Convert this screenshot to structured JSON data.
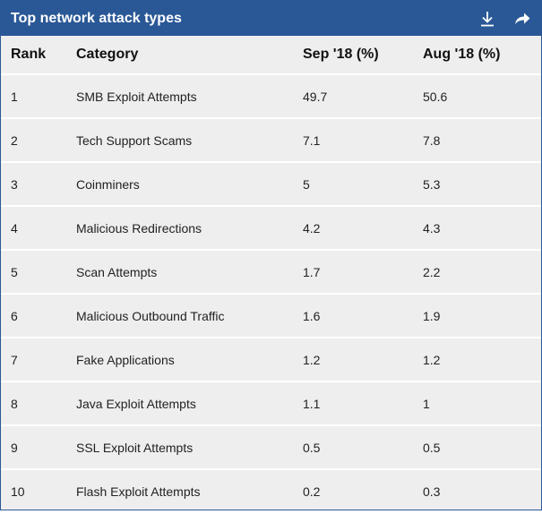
{
  "header": {
    "title": "Top network attack types",
    "icons": [
      "download-icon",
      "share-icon"
    ]
  },
  "colors": {
    "header_bg": "#2a5896",
    "table_bg": "#efeeee",
    "row_divider": "#ffffff"
  },
  "table": {
    "columns": [
      "Rank",
      "Category",
      "Sep '18 (%)",
      "Aug '18 (%)"
    ],
    "rows": [
      {
        "rank": "1",
        "category": "SMB Exploit Attempts",
        "sep": "49.7",
        "aug": "50.6"
      },
      {
        "rank": "2",
        "category": "Tech Support Scams",
        "sep": "7.1",
        "aug": "7.8"
      },
      {
        "rank": "3",
        "category": "Coinminers",
        "sep": "5",
        "aug": "5.3"
      },
      {
        "rank": "4",
        "category": "Malicious Redirections",
        "sep": "4.2",
        "aug": "4.3"
      },
      {
        "rank": "5",
        "category": "Scan Attempts",
        "sep": "1.7",
        "aug": "2.2"
      },
      {
        "rank": "6",
        "category": "Malicious Outbound Traffic",
        "sep": "1.6",
        "aug": "1.9"
      },
      {
        "rank": "7",
        "category": "Fake Applications",
        "sep": "1.2",
        "aug": "1.2"
      },
      {
        "rank": "8",
        "category": "Java Exploit Attempts",
        "sep": "1.1",
        "aug": "1"
      },
      {
        "rank": "9",
        "category": "SSL Exploit Attempts",
        "sep": "0.5",
        "aug": "0.5"
      },
      {
        "rank": "10",
        "category": "Flash Exploit Attempts",
        "sep": "0.2",
        "aug": "0.3"
      }
    ]
  }
}
